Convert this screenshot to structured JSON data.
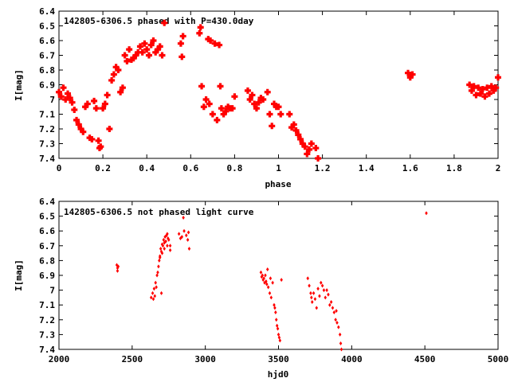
{
  "colors": {
    "series": "#ff0000",
    "axis": "#000000",
    "background": "#ffffff"
  },
  "chart_data": [
    {
      "type": "scatter",
      "title": "142805-6306.5 phased with P=430.0day",
      "xlabel": "phase",
      "ylabel": "I[mag]",
      "xlim": [
        0,
        2
      ],
      "ylim": [
        6.4,
        7.4
      ],
      "y_inverted": true,
      "grid": false,
      "legend": "none",
      "marker": "filled-cross",
      "x_ticks": [
        "0",
        "0.2",
        "0.4",
        "0.6",
        "0.8",
        "1",
        "1.2",
        "1.4",
        "1.6",
        "1.8",
        "2"
      ],
      "y_ticks": [
        "6.4",
        "6.5",
        "6.6",
        "6.7",
        "6.8",
        "6.9",
        "7",
        "7.1",
        "7.2",
        "7.3",
        "7.4"
      ],
      "series": [
        {
          "points": [
            [
              0.0,
              6.95
            ],
            [
              0.01,
              6.98
            ],
            [
              0.02,
              6.92
            ],
            [
              0.03,
              7.0
            ],
            [
              0.04,
              6.96
            ],
            [
              0.05,
              6.99
            ],
            [
              0.06,
              7.02
            ],
            [
              0.07,
              7.07
            ],
            [
              0.08,
              7.14
            ],
            [
              0.09,
              7.17
            ],
            [
              0.1,
              7.2
            ],
            [
              0.11,
              7.22
            ],
            [
              0.12,
              7.05
            ],
            [
              0.13,
              7.03
            ],
            [
              0.14,
              7.26
            ],
            [
              0.15,
              7.27
            ],
            [
              0.16,
              7.01
            ],
            [
              0.17,
              7.06
            ],
            [
              0.18,
              7.28
            ],
            [
              0.185,
              7.33
            ],
            [
              0.19,
              7.32
            ],
            [
              0.2,
              7.06
            ],
            [
              0.21,
              7.03
            ],
            [
              0.22,
              6.97
            ],
            [
              0.23,
              7.2
            ],
            [
              0.24,
              6.87
            ],
            [
              0.25,
              6.83
            ],
            [
              0.26,
              6.78
            ],
            [
              0.27,
              6.8
            ],
            [
              0.28,
              6.95
            ],
            [
              0.29,
              6.92
            ],
            [
              0.3,
              6.7
            ],
            [
              0.31,
              6.74
            ],
            [
              0.32,
              6.66
            ],
            [
              0.33,
              6.73
            ],
            [
              0.34,
              6.72
            ],
            [
              0.35,
              6.7
            ],
            [
              0.36,
              6.68
            ],
            [
              0.37,
              6.64
            ],
            [
              0.38,
              6.68
            ],
            [
              0.39,
              6.62
            ],
            [
              0.4,
              6.66
            ],
            [
              0.41,
              6.7
            ],
            [
              0.42,
              6.63
            ],
            [
              0.43,
              6.6
            ],
            [
              0.44,
              6.68
            ],
            [
              0.45,
              6.66
            ],
            [
              0.46,
              6.64
            ],
            [
              0.47,
              6.7
            ],
            [
              0.48,
              6.48
            ],
            [
              0.555,
              6.62
            ],
            [
              0.56,
              6.71
            ],
            [
              0.565,
              6.57
            ],
            [
              0.64,
              6.55
            ],
            [
              0.645,
              6.51
            ],
            [
              0.65,
              6.91
            ],
            [
              0.66,
              7.05
            ],
            [
              0.67,
              7.0
            ],
            [
              0.68,
              6.59
            ],
            [
              0.685,
              7.03
            ],
            [
              0.69,
              6.6
            ],
            [
              0.7,
              7.1
            ],
            [
              0.71,
              6.62
            ],
            [
              0.72,
              7.14
            ],
            [
              0.73,
              6.63
            ],
            [
              0.735,
              6.91
            ],
            [
              0.74,
              7.06
            ],
            [
              0.75,
              7.1
            ],
            [
              0.76,
              7.08
            ],
            [
              0.77,
              7.05
            ],
            [
              0.78,
              7.06
            ],
            [
              0.79,
              7.06
            ],
            [
              0.8,
              6.98
            ],
            [
              0.86,
              6.94
            ],
            [
              0.87,
              7.0
            ],
            [
              0.88,
              6.97
            ],
            [
              0.89,
              7.03
            ],
            [
              0.9,
              7.06
            ],
            [
              0.91,
              7.02
            ],
            [
              0.92,
              6.99
            ],
            [
              0.93,
              7.0
            ],
            [
              0.95,
              6.95
            ],
            [
              0.96,
              7.1
            ],
            [
              0.97,
              7.18
            ],
            [
              0.98,
              7.03
            ],
            [
              0.99,
              7.05
            ],
            [
              1.0,
              7.05
            ],
            [
              1.01,
              7.1
            ],
            [
              1.05,
              7.1
            ],
            [
              1.06,
              7.19
            ],
            [
              1.07,
              7.17
            ],
            [
              1.08,
              7.21
            ],
            [
              1.09,
              7.24
            ],
            [
              1.1,
              7.27
            ],
            [
              1.11,
              7.3
            ],
            [
              1.12,
              7.32
            ],
            [
              1.13,
              7.37
            ],
            [
              1.14,
              7.34
            ],
            [
              1.15,
              7.3
            ],
            [
              1.17,
              7.33
            ],
            [
              1.18,
              7.4
            ],
            [
              1.59,
              6.82
            ],
            [
              1.6,
              6.85
            ],
            [
              1.61,
              6.83
            ],
            [
              1.87,
              6.9
            ],
            [
              1.88,
              6.94
            ],
            [
              1.89,
              6.91
            ],
            [
              1.9,
              6.97
            ],
            [
              1.91,
              6.92
            ],
            [
              1.92,
              6.96
            ],
            [
              1.93,
              6.93
            ],
            [
              1.94,
              6.98
            ],
            [
              1.95,
              6.92
            ],
            [
              1.96,
              6.96
            ],
            [
              1.97,
              6.91
            ],
            [
              1.98,
              6.94
            ],
            [
              1.99,
              6.92
            ],
            [
              2.0,
              6.85
            ]
          ]
        }
      ]
    },
    {
      "type": "scatter",
      "title": "142805-6306.5 not phased light curve",
      "xlabel": "hjd0",
      "ylabel": "I[mag]",
      "xlim": [
        2000,
        5000
      ],
      "ylim": [
        6.4,
        7.4
      ],
      "y_inverted": true,
      "grid": false,
      "legend": "none",
      "marker": "small-diamond",
      "x_ticks": [
        "2000",
        "2500",
        "3000",
        "3500",
        "4000",
        "4500",
        "5000"
      ],
      "y_ticks": [
        "6.4",
        "6.5",
        "6.6",
        "6.7",
        "6.8",
        "6.9",
        "7",
        "7.1",
        "7.2",
        "7.3",
        "7.4"
      ],
      "series": [
        {
          "points": [
            [
              2395,
              6.83
            ],
            [
              2400,
              6.85
            ],
            [
              2405,
              6.84
            ],
            [
              2400,
              6.87
            ],
            [
              2630,
              7.05
            ],
            [
              2640,
              7.02
            ],
            [
              2645,
              7.06
            ],
            [
              2650,
              6.99
            ],
            [
              2655,
              7.04
            ],
            [
              2660,
              6.95
            ],
            [
              2665,
              6.98
            ],
            [
              2670,
              6.9
            ],
            [
              2675,
              6.88
            ],
            [
              2680,
              6.84
            ],
            [
              2685,
              6.8
            ],
            [
              2690,
              6.77
            ],
            [
              2695,
              6.72
            ],
            [
              2700,
              6.74
            ],
            [
              2705,
              6.69
            ],
            [
              2710,
              6.7
            ],
            [
              2715,
              6.66
            ],
            [
              2720,
              6.68
            ],
            [
              2725,
              6.64
            ],
            [
              2730,
              6.67
            ],
            [
              2735,
              6.63
            ],
            [
              2740,
              6.62
            ],
            [
              2745,
              6.65
            ],
            [
              2750,
              6.66
            ],
            [
              2760,
              6.7
            ],
            [
              2690,
              6.78
            ],
            [
              2700,
              7.02
            ],
            [
              2705,
              6.75
            ],
            [
              2720,
              6.72
            ],
            [
              2740,
              6.7
            ],
            [
              2760,
              6.73
            ],
            [
              2820,
              6.62
            ],
            [
              2830,
              6.65
            ],
            [
              2840,
              6.64
            ],
            [
              2850,
              6.51
            ],
            [
              2855,
              6.6
            ],
            [
              2870,
              6.63
            ],
            [
              2880,
              6.66
            ],
            [
              2885,
              6.61
            ],
            [
              2890,
              6.72
            ],
            [
              3380,
              6.88
            ],
            [
              3385,
              6.91
            ],
            [
              3390,
              6.9
            ],
            [
              3395,
              6.93
            ],
            [
              3400,
              6.92
            ],
            [
              3405,
              6.95
            ],
            [
              3410,
              6.9
            ],
            [
              3415,
              6.94
            ],
            [
              3420,
              6.96
            ],
            [
              3425,
              6.86
            ],
            [
              3430,
              6.98
            ],
            [
              3440,
              7.02
            ],
            [
              3445,
              6.92
            ],
            [
              3450,
              7.05
            ],
            [
              3460,
              6.95
            ],
            [
              3470,
              7.1
            ],
            [
              3475,
              7.12
            ],
            [
              3480,
              7.15
            ],
            [
              3485,
              7.2
            ],
            [
              3490,
              7.24
            ],
            [
              3495,
              7.26
            ],
            [
              3500,
              7.3
            ],
            [
              3505,
              7.32
            ],
            [
              3510,
              7.34
            ],
            [
              3520,
              6.93
            ],
            [
              3700,
              6.92
            ],
            [
              3710,
              6.97
            ],
            [
              3720,
              7.02
            ],
            [
              3725,
              7.05
            ],
            [
              3730,
              7.08
            ],
            [
              3740,
              7.02
            ],
            [
              3750,
              7.06
            ],
            [
              3760,
              7.12
            ],
            [
              3770,
              6.99
            ],
            [
              3780,
              7.04
            ],
            [
              3790,
              6.95
            ],
            [
              3800,
              6.97
            ],
            [
              3810,
              7.0
            ],
            [
              3820,
              7.05
            ],
            [
              3830,
              7.0
            ],
            [
              3840,
              7.03
            ],
            [
              3850,
              7.1
            ],
            [
              3860,
              7.08
            ],
            [
              3870,
              7.12
            ],
            [
              3880,
              7.15
            ],
            [
              3890,
              7.2
            ],
            [
              3895,
              7.14
            ],
            [
              3900,
              7.22
            ],
            [
              3910,
              7.25
            ],
            [
              3920,
              7.3
            ],
            [
              3925,
              7.36
            ],
            [
              3930,
              7.4
            ],
            [
              4510,
              6.48
            ]
          ]
        }
      ]
    }
  ]
}
